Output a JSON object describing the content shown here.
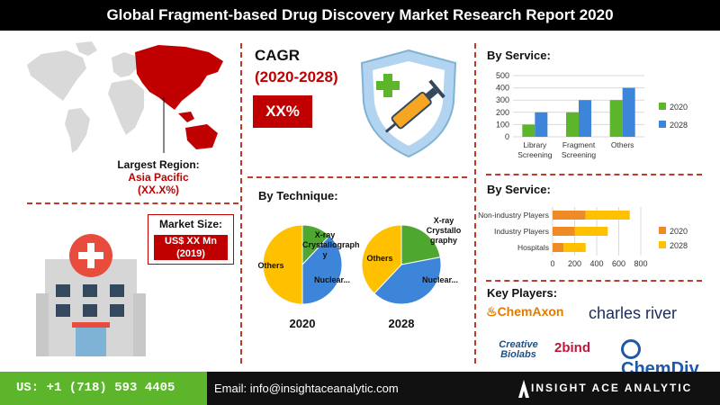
{
  "title": "Global Fragment-based Drug Discovery Market Research Report 2020",
  "region": {
    "label": "Largest Region:",
    "name": "Asia Pacific",
    "pct": "(XX.X%)"
  },
  "market_size": {
    "label": "Market Size:",
    "value_line1": "US$ XX Mn",
    "value_line2": "(2019)"
  },
  "cagr": {
    "title": "CAGR",
    "period": "(2020-2028)",
    "value": "XX%"
  },
  "technique": {
    "title": "By Technique:",
    "labels_2020": {
      "xray": "X-ray Crystallograph y",
      "nuclear": "Nuclear...",
      "others": "Others"
    },
    "labels_2028": {
      "xray": "X-ray Crystallo graphy",
      "nuclear": "Nuclear...",
      "others": "Others"
    }
  },
  "service1": {
    "title": "By Service:"
  },
  "service2": {
    "title": "By Service:"
  },
  "key_players": {
    "title": "Key Players:",
    "logos": [
      "ChemAxon",
      "charles river",
      "Creative Biolabs",
      "2bind",
      "ChemDiv"
    ]
  },
  "footer": {
    "phone": "US: +1 (718) 593 4405",
    "email": "Email: info@insightaceanalytic.com",
    "brand": "INSIGHT ACE ANALYTIC"
  },
  "colors": {
    "accent_red": "#c00000",
    "green": "#5cb52b",
    "blue": "#3d85d8",
    "orange": "#f08a24",
    "yellow": "#ffc000",
    "pie_green": "#4ea72e"
  },
  "chart_data": [
    {
      "type": "pie",
      "title": "2020",
      "categories": [
        "X-ray Crystallography",
        "Nuclear...",
        "Others"
      ],
      "values": [
        12,
        38,
        50
      ]
    },
    {
      "type": "pie",
      "title": "2028",
      "categories": [
        "X-ray Crystallography",
        "Nuclear...",
        "Others"
      ],
      "values": [
        22,
        40,
        38
      ]
    },
    {
      "type": "bar",
      "title": "By Service:",
      "categories": [
        "Library Screening",
        "Fragment Screening",
        "Others"
      ],
      "series": [
        {
          "name": "2020",
          "values": [
            100,
            200,
            300
          ]
        },
        {
          "name": "2028",
          "values": [
            200,
            300,
            400
          ]
        }
      ],
      "ylim": [
        0,
        500
      ],
      "yticks": [
        0,
        100,
        200,
        300,
        400,
        500
      ],
      "grid": true,
      "legend": "right"
    },
    {
      "type": "bar",
      "orientation": "horizontal",
      "stacked": true,
      "title": "By Service:",
      "categories": [
        "Non-industry Players",
        "Industry Players",
        "Hospitals"
      ],
      "series": [
        {
          "name": "2020",
          "values": [
            300,
            200,
            100
          ]
        },
        {
          "name": "2028",
          "values": [
            400,
            300,
            200
          ]
        }
      ],
      "xlim": [
        0,
        800
      ],
      "xticks": [
        0,
        200,
        400,
        600,
        800
      ],
      "grid": true,
      "legend": "right"
    }
  ]
}
